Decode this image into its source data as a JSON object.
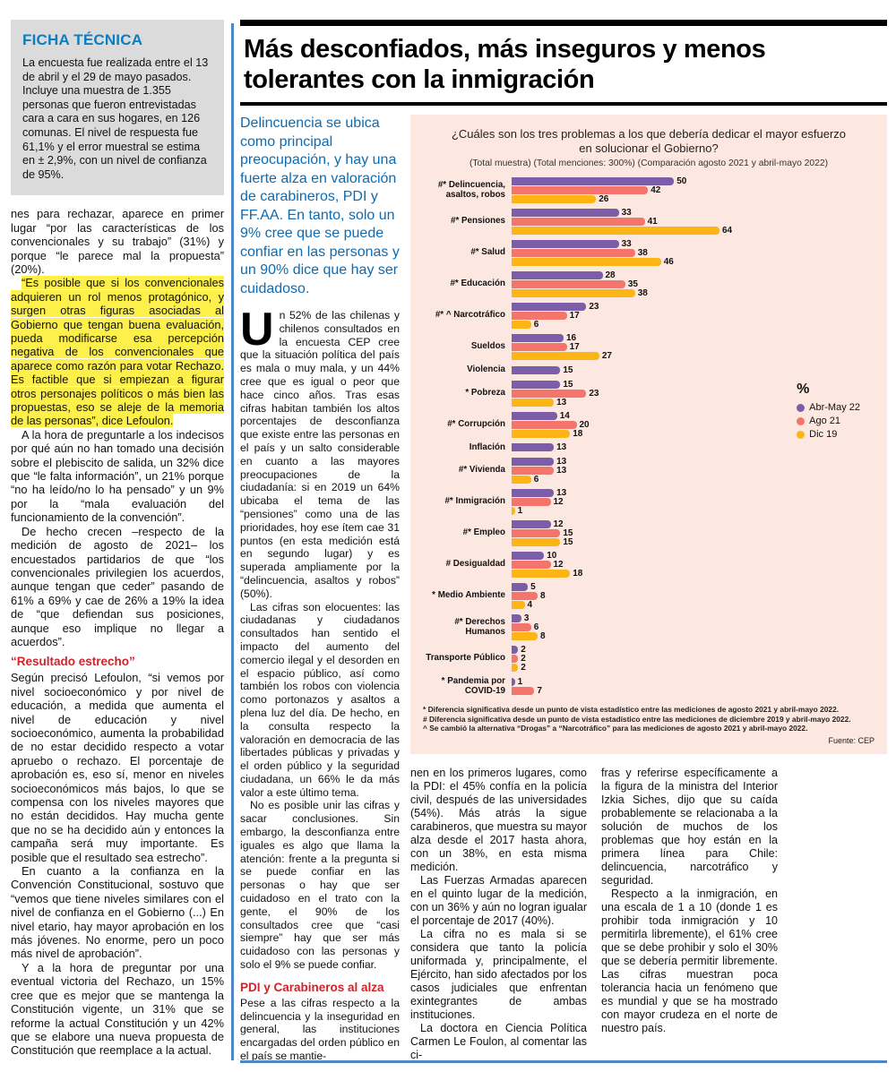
{
  "ficha": {
    "title": "FICHA TÉCNICA",
    "body": "La encuesta fue realizada entre el 13 de abril y el 29 de mayo pasados. Incluye una muestra de 1.355 personas que fueron entrevistadas cara a cara en sus hogares, en 126 comunas. El nivel de respuesta fue 61,1% y el error muestral se estima en ± 2,9%, con un nivel de confianza de 95%."
  },
  "left_column": {
    "p1": "nes para rechazar, aparece en primer lugar “por las características de los convencionales y su trabajo” (31%) y porque “le parece mal la propuesta” (20%).",
    "highlight": "“Es posible que si los convencionales adquieren un rol menos protagónico, y surgen otras figuras asociadas al Gobierno que tengan buena evaluación, pueda modificarse esa percepción negativa de los convencionales que aparece como razón para votar Rechazo. Es factible que si empiezan a figurar otros personajes políticos o más bien las propuestas, eso se aleje de la memoria de las personas”, dice Lefoulon.",
    "p3": "A la hora de preguntarle a los indecisos por qué aún no han tomado una decisión sobre el plebiscito de salida, un 32% dice que “le falta información”, un 21% porque “no ha leído/no lo ha pensado” y un 9% por la “mala evaluación del funcionamiento de la convención”.",
    "p4": "De hecho crecen –respecto de la medición de agosto de 2021– los encuestados partidarios de que “los convencionales privilegien los acuerdos, aunque tengan que ceder” pasando de 61% a 69% y cae de 26% a 19% la idea de “que defiendan sus posiciones, aunque eso implique no llegar a acuerdos”.",
    "subhead": "“Resultado estrecho”",
    "p5": "Según precisó Lefoulon, “si vemos por nivel socioeconómico y por nivel de educación, a medida que aumenta el nivel de educación y nivel socioeconómico, aumenta la probabilidad de no estar decidido respecto a votar apruebo o rechazo. El porcentaje de aprobación es, eso sí, menor en niveles socioeconómicos más bajos, lo que se compensa con los niveles mayores que no están decididos. Hay mucha gente que no se ha decidido aún y entonces la campaña será muy importante. Es posible que el resultado sea estrecho”.",
    "p6": "En cuanto a la confianza en la Convención Constitucional, sostuvo que “vemos que tiene niveles similares con el nivel de confianza en el Gobierno (...) En nivel etario, hay mayor aprobación en los más jóvenes. No enorme, pero un poco más nivel de aprobación”.",
    "p7": "Y a la hora de preguntar por una eventual victoria del Rechazo, un 15% cree que es mejor que se mantenga la Constitución vigente, un 31% que se reforme la actual Constitución y un 42% que se elabore una nueva propuesta de Constitución que reemplace a la actual."
  },
  "headline": "Más desconfiados, más inseguros y menos tolerantes con la inmigración",
  "lede": "Delincuencia se ubica como principal preocupación, y hay una fuerte alza en valoración de carabineros, PDI y FF.AA. En tanto, solo un 9% cree que se puede confiar en las personas y un 90% dice que hay ser cuidadoso.",
  "body": {
    "dropcap": "U",
    "p1_rest": "n 52% de las chilenas y chilenos consultados en la encuesta CEP cree que la situación política del país es mala o muy mala, y un 44% cree que es igual o peor que hace cinco años. Tras esas cifras habitan también los altos porcentajes de desconfianza que existe entre las personas en el país y un salto considerable en cuanto a las mayores preocupaciones de la ciudadanía: si en 2019 un 64% ubicaba el tema de las “pensiones” como una de las prioridades, hoy ese ítem cae 31 puntos (en esta medición está en segundo lugar) y es superada ampliamente por la “delincuencia, asaltos y robos” (50%).",
    "p2": "Las cifras son elocuentes: las ciudadanas y ciudadanos consultados han sentido el impacto del aumento del comercio ilegal y el desorden en el espacio público, así como también los robos con violencia como portonazos y asaltos a plena luz del día. De hecho, en la consulta respecto la valoración en democracia de las libertades públicas y privadas y el orden público y la seguridad ciudadana, un 66% le da más valor a este último tema.",
    "p3": "No es posible unir las cifras y sacar conclusiones. Sin embargo, la desconfianza entre iguales es algo que llama la atención: frente a la pregunta si se puede confiar en las personas o hay que ser cuidadoso en el trato con la gente, el 90% de los consultados cree que “casi siempre” hay que ser más cuidadoso con las personas y solo el 9% se puede confiar.",
    "subhead": "PDI y Carabineros al alza",
    "p4": "Pese a las cifras respecto a la delincuencia y la inseguridad en general, las instituciones encargadas del orden público en el país se mantie-"
  },
  "bottom_col1": {
    "p1": "nen en los primeros lugares, como la PDI: el 45% confía en la policía civil, después de las universidades (54%). Más atrás la sigue carabineros, que muestra su mayor alza desde el 2017 hasta ahora, con un 38%, en esta misma medición.",
    "p2": "Las Fuerzas Armadas aparecen en el quinto lugar de la medición, con un 36% y aún no logran igualar el porcentaje de 2017 (40%).",
    "p3": "La cifra no es mala si se considera que tanto la policía uniformada y, principalmente, el Ejército, han sido afectados por los casos judiciales que enfrentan exintegrantes de ambas instituciones.",
    "p4": "La doctora en Ciencia Política Carmen Le Foulon, al comentar las ci-"
  },
  "bottom_col2": {
    "p1": "fras y referirse específicamente a la figura de la ministra del Interior Izkia Siches, dijo que su caída probablemente se relacionaba a la solución de muchos de los problemas que hoy están en la primera línea para Chile: delincuencia, narcotráfico y seguridad.",
    "p2": "Respecto a la inmigración, en una escala de 1 a 10 (donde 1 es prohibir toda inmigración y 10 permitirla libremente), el 61% cree que se debe prohibir y solo el 30% que se debería permitir libremente. Las cifras muestran poca tolerancia hacia un fenómeno que es mundial y que se ha mostrado con mayor crudeza en el norte de nuestro país."
  },
  "chart_data": {
    "type": "bar",
    "orientation": "horizontal",
    "title": "¿Cuáles son los tres problemas a los que debería dedicar el mayor esfuerzo en solucionar el Gobierno?",
    "subtitle": "(Total muestra) (Total menciones: 300%) (Comparación agosto 2021 y abril-mayo 2022)",
    "unit": "%",
    "background": "#fce8e1",
    "xmax": 64,
    "legend_position": "right",
    "categories": [
      "#* Delincuencia, asaltos, robos",
      "#* Pensiones",
      "#* Salud",
      "#* Educación",
      "#* ^ Narcotráfico",
      "Sueldos",
      "Violencia",
      "* Pobreza",
      "#* Corrupción",
      "Inflación",
      "#* Vivienda",
      "#* Inmigración",
      "#* Empleo",
      "# Desigualdad",
      "* Medio Ambiente",
      "#* Derechos Humanos",
      "Transporte Público",
      "* Pandemia por COVID-19"
    ],
    "series": [
      {
        "name": "Abr-May 22",
        "color": "#7b5ea7",
        "values": [
          50,
          33,
          33,
          28,
          23,
          16,
          15,
          15,
          14,
          13,
          13,
          13,
          12,
          10,
          5,
          3,
          2,
          1
        ]
      },
      {
        "name": "Ago 21",
        "color": "#f4756c",
        "values": [
          42,
          41,
          38,
          35,
          17,
          17,
          null,
          23,
          20,
          null,
          13,
          12,
          15,
          12,
          8,
          6,
          2,
          7
        ]
      },
      {
        "name": "Dic 19",
        "color": "#fcb514",
        "values": [
          26,
          64,
          46,
          38,
          6,
          27,
          null,
          13,
          18,
          null,
          6,
          1,
          15,
          18,
          4,
          8,
          2,
          null
        ]
      }
    ],
    "footnotes": [
      "* Diferencia significativa desde un punto de vista estadístico entre las mediciones de agosto 2021 y abril-mayo 2022.",
      "# Diferencia significativa desde un punto de vista estadístico entre las mediciones de diciembre 2019 y abril-mayo 2022.",
      "^ Se cambió la alternativa “Drogas” a “Narcotráfico” para las mediciones de agosto 2021 y abril-mayo 2022."
    ],
    "source": "Fuente: CEP"
  }
}
